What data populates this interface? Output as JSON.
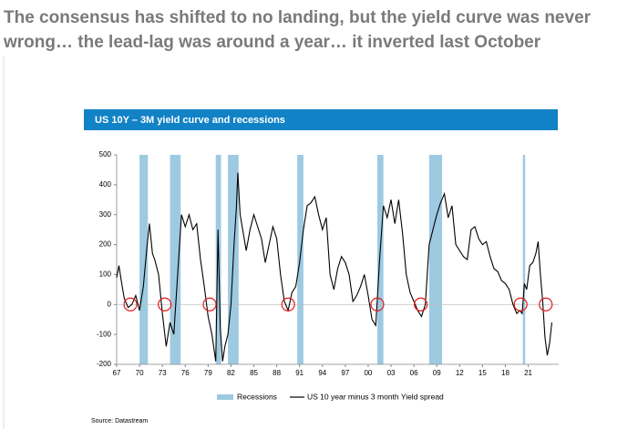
{
  "headline": [
    "The consensus has shifted to no landing, but the yield curve was never",
    "wrong… the lead-lag was around a year… it inverted last October"
  ],
  "chart_data": {
    "type": "line",
    "title": "US 10Y – 3M yield curve and recessions",
    "source": "Source: Datastream",
    "x": [
      1967.0,
      1967.3,
      1967.6,
      1968.0,
      1968.5,
      1969.0,
      1969.5,
      1970.0,
      1970.5,
      1971.0,
      1971.3,
      1971.7,
      1972.0,
      1972.5,
      1973.0,
      1973.5,
      1974.0,
      1974.5,
      1975.0,
      1975.5,
      1976.0,
      1976.5,
      1977.0,
      1977.5,
      1978.0,
      1978.5,
      1979.0,
      1979.5,
      1980.0,
      1980.3,
      1980.6,
      1980.9,
      1981.2,
      1981.6,
      1982.0,
      1982.4,
      1982.7,
      1982.9,
      1983.2,
      1983.6,
      1984.0,
      1984.5,
      1985.0,
      1985.5,
      1986.0,
      1986.5,
      1987.0,
      1987.5,
      1988.0,
      1988.5,
      1989.0,
      1989.5,
      1990.0,
      1990.5,
      1991.0,
      1991.5,
      1992.0,
      1992.5,
      1993.0,
      1993.5,
      1994.0,
      1994.5,
      1995.0,
      1995.5,
      1996.0,
      1996.5,
      1997.0,
      1997.5,
      1998.0,
      1998.5,
      1999.0,
      1999.5,
      2000.0,
      2000.5,
      2001.0,
      2001.5,
      2002.0,
      2002.5,
      2003.0,
      2003.5,
      2004.0,
      2004.5,
      2005.0,
      2005.5,
      2006.0,
      2006.5,
      2007.0,
      2007.5,
      2008.0,
      2008.5,
      2009.0,
      2009.5,
      2010.0,
      2010.5,
      2011.0,
      2011.5,
      2012.0,
      2012.5,
      2013.0,
      2013.5,
      2014.0,
      2014.5,
      2015.0,
      2015.5,
      2016.0,
      2016.5,
      2017.0,
      2017.5,
      2018.0,
      2018.5,
      2019.0,
      2019.5,
      2019.9,
      2020.2,
      2020.5,
      2020.8,
      2021.2,
      2021.6,
      2022.0,
      2022.3,
      2022.6,
      2022.9,
      2023.2,
      2023.5,
      2023.8,
      2024.1
    ],
    "series": [
      {
        "name": "US 10 year minus 3 month Yield spread",
        "color": "#000000",
        "values": [
          90,
          130,
          80,
          20,
          -10,
          0,
          30,
          -20,
          60,
          200,
          270,
          170,
          150,
          100,
          -30,
          -140,
          -60,
          -100,
          100,
          300,
          260,
          300,
          250,
          270,
          150,
          60,
          -40,
          -100,
          -190,
          250,
          -80,
          -190,
          -140,
          -100,
          0,
          200,
          320,
          440,
          300,
          240,
          180,
          250,
          300,
          260,
          220,
          140,
          200,
          260,
          220,
          100,
          10,
          -20,
          40,
          60,
          140,
          250,
          330,
          340,
          360,
          300,
          250,
          290,
          100,
          50,
          120,
          160,
          140,
          100,
          10,
          30,
          60,
          100,
          30,
          -50,
          -70,
          150,
          330,
          290,
          350,
          270,
          350,
          240,
          100,
          40,
          10,
          -20,
          -40,
          0,
          200,
          250,
          300,
          340,
          370,
          290,
          330,
          200,
          180,
          160,
          150,
          250,
          260,
          220,
          200,
          210,
          160,
          120,
          110,
          80,
          70,
          50,
          0,
          -30,
          -20,
          -30,
          70,
          50,
          130,
          140,
          170,
          210,
          100,
          10,
          -110,
          -170,
          -130,
          -60
        ]
      }
    ],
    "recessions": {
      "name": "Recessions",
      "color": "#9ecae1",
      "periods": [
        [
          1970.0,
          1971.1
        ],
        [
          1974.0,
          1975.4
        ],
        [
          1980.0,
          1980.7
        ],
        [
          1981.6,
          1983.0
        ],
        [
          1990.7,
          1991.5
        ],
        [
          2001.2,
          2002.0
        ],
        [
          2008.0,
          2009.7
        ],
        [
          2020.3,
          2020.6
        ]
      ]
    },
    "circles": {
      "color": "#e31a1c",
      "x": [
        1968.8,
        1973.3,
        1979.2,
        1989.5,
        2001.2,
        2006.9,
        2020.0,
        2023.3
      ],
      "y": [
        0,
        0,
        0,
        0,
        0,
        0,
        0,
        0
      ]
    },
    "xlim": [
      1967,
      2025
    ],
    "xticks": [
      {
        "value": 1967,
        "label": "67"
      },
      {
        "value": 1970,
        "label": "70"
      },
      {
        "value": 1973,
        "label": "73"
      },
      {
        "value": 1976,
        "label": "76"
      },
      {
        "value": 1979,
        "label": "79"
      },
      {
        "value": 1982,
        "label": "82"
      },
      {
        "value": 1985,
        "label": "85"
      },
      {
        "value": 1988,
        "label": "88"
      },
      {
        "value": 1991,
        "label": "91"
      },
      {
        "value": 1994,
        "label": "94"
      },
      {
        "value": 1997,
        "label": "97"
      },
      {
        "value": 2000,
        "label": "00"
      },
      {
        "value": 2003,
        "label": "03"
      },
      {
        "value": 2006,
        "label": "06"
      },
      {
        "value": 2009,
        "label": "09"
      },
      {
        "value": 2012,
        "label": "12"
      },
      {
        "value": 2015,
        "label": "15"
      },
      {
        "value": 2018,
        "label": "18"
      },
      {
        "value": 2021,
        "label": "21"
      }
    ],
    "ylim": [
      -200,
      500
    ],
    "yticks": [
      -200,
      -100,
      0,
      100,
      200,
      300,
      400,
      500
    ]
  }
}
